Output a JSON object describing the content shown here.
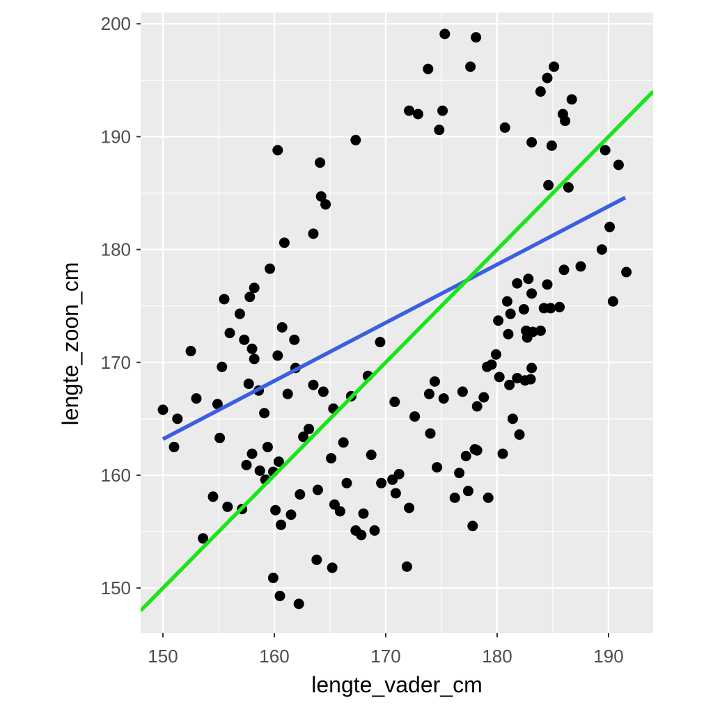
{
  "chart_data": {
    "type": "scatter",
    "title": "",
    "xlabel": "lengte_vader_cm",
    "ylabel": "lengte_zoon_cm",
    "xlim": [
      148,
      194
    ],
    "ylim": [
      146,
      201
    ],
    "xticks": [
      150,
      160,
      170,
      180,
      190
    ],
    "yticks": [
      150,
      160,
      170,
      180,
      190,
      200
    ],
    "grid": true,
    "legend": "none",
    "colors": {
      "panel": "#ebebeb",
      "grid": "#ffffff",
      "points": "#000000",
      "regression_line": "#3b5fe0",
      "identity_line": "#19e619",
      "tick_text": "#4d4d4d"
    },
    "lines": [
      {
        "role": "regression",
        "color": "#3b5fe0",
        "x": [
          150,
          191.5
        ],
        "y": [
          163.2,
          184.6
        ]
      },
      {
        "role": "identity",
        "color": "#19e619",
        "x": [
          148,
          194
        ],
        "y": [
          148,
          194
        ]
      }
    ],
    "points": {
      "x": [
        175.3,
        178.1,
        177.6,
        173.8,
        185.1,
        184.5,
        183.9,
        186.7,
        185.9,
        172.1,
        172.9,
        175.1,
        174.8,
        167.3,
        160.3,
        164.1,
        180.7,
        183.1,
        184.9,
        189.7,
        190.9,
        186.1,
        184.6,
        186.4,
        189.4,
        190.1,
        191.6,
        190.4,
        187.5,
        186.0,
        184.5,
        183.1,
        182.8,
        181.8,
        184.8,
        180.9,
        180.1,
        181.2,
        182.6,
        183.2,
        181.0,
        182.4,
        184.2,
        185.6,
        183.9,
        182.7,
        179.1,
        180.2,
        181.8,
        183.1,
        178.2,
        178.0,
        177.2,
        176.6,
        179.2,
        180.5,
        182.0,
        181.4,
        183.0,
        150.0,
        151.0,
        151.3,
        152.5,
        153.0,
        154.9,
        155.1,
        155.3,
        155.5,
        156.0,
        157.3,
        157.7,
        158.2,
        158.0,
        158.6,
        159.1,
        159.4,
        159.9,
        160.4,
        161.2,
        162.6,
        163.1,
        163.9,
        160.1,
        160.6,
        158.0,
        157.5,
        159.2,
        162.3,
        161.5,
        163.8,
        165.2,
        165.9,
        165.4,
        166.5,
        167.3,
        167.8,
        168.0,
        169.0,
        169.6,
        170.6,
        171.2,
        172.1,
        171.9,
        174.6,
        176.2,
        177.4,
        177.8,
        178.2,
        174.0,
        170.9,
        168.7,
        166.2,
        165.1,
        160.5,
        162.2,
        159.9,
        157.1,
        154.5,
        153.6,
        155.8,
        158.7,
        160.3,
        161.9,
        163.5,
        164.4,
        165.3,
        166.9,
        168.4,
        169.5,
        170.8,
        172.6,
        173.9,
        174.4,
        175.2,
        176.9,
        178.8,
        179.5,
        179.9,
        181.1,
        182.5,
        164.2,
        164.6,
        163.5,
        160.9,
        159.6,
        158.2,
        157.8,
        156.9,
        160.7,
        161.8
      ],
      "y": [
        199.1,
        198.8,
        196.2,
        196.0,
        196.2,
        195.2,
        194.0,
        193.3,
        192.0,
        192.3,
        192.0,
        192.3,
        190.6,
        189.7,
        188.8,
        187.7,
        190.8,
        189.5,
        189.2,
        188.8,
        187.5,
        191.4,
        185.7,
        185.5,
        180.0,
        182.0,
        178.0,
        175.4,
        178.5,
        178.2,
        176.9,
        176.1,
        177.4,
        177.0,
        174.8,
        175.4,
        173.7,
        174.3,
        172.8,
        172.7,
        172.5,
        174.7,
        174.8,
        174.9,
        172.8,
        172.2,
        169.6,
        168.7,
        168.6,
        169.5,
        166.1,
        162.3,
        161.7,
        160.2,
        158.0,
        161.9,
        163.6,
        165.0,
        168.5,
        165.8,
        162.5,
        165.0,
        171.0,
        166.8,
        166.3,
        163.3,
        169.6,
        175.6,
        172.6,
        172.0,
        168.1,
        170.3,
        171.2,
        167.5,
        165.5,
        162.5,
        160.3,
        161.2,
        167.2,
        163.4,
        164.1,
        158.7,
        156.9,
        155.6,
        161.9,
        160.9,
        159.6,
        158.3,
        156.5,
        152.5,
        151.8,
        156.8,
        157.4,
        159.3,
        155.1,
        154.7,
        156.6,
        155.1,
        159.3,
        159.6,
        160.1,
        157.1,
        151.9,
        160.7,
        158.0,
        158.6,
        155.5,
        162.2,
        163.7,
        158.4,
        161.8,
        162.9,
        161.5,
        149.3,
        148.6,
        150.9,
        157.0,
        158.1,
        154.4,
        157.2,
        160.4,
        170.6,
        169.5,
        168.0,
        167.4,
        165.9,
        167.0,
        168.8,
        171.8,
        166.5,
        165.2,
        167.2,
        168.3,
        166.8,
        167.4,
        166.9,
        169.8,
        170.7,
        168.0,
        168.4,
        184.7,
        184.0,
        181.4,
        180.6,
        178.3,
        176.6,
        175.8,
        174.3,
        173.1,
        172.0
      ]
    }
  }
}
